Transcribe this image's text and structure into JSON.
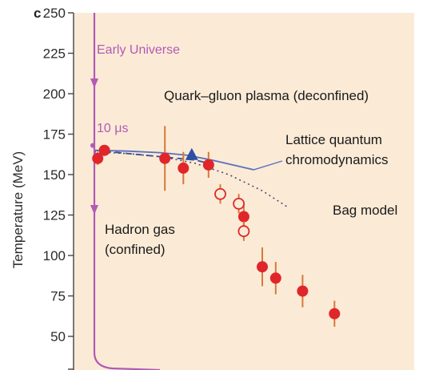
{
  "chart_data": {
    "type": "scatter",
    "panel_label": "c",
    "ylabel": "Temperature (MeV)",
    "xlabel": "",
    "ylim": [
      40,
      250
    ],
    "yticks": [
      50,
      75,
      100,
      125,
      150,
      175,
      200,
      225,
      250
    ],
    "grid": false,
    "background_color": "#fbebd6",
    "annotations": {
      "early_universe": "Early Universe",
      "time_marker": "10 μs",
      "qgp": "Quark–gluon plasma (deconfined)",
      "lattice_line1": "Lattice quantum",
      "lattice_line2": "chromodynamics",
      "bag_model": "Bag model",
      "hadron_line1": "Hadron gas",
      "hadron_line2": "(confined)"
    },
    "series": [
      {
        "marker": "filled-circle",
        "color": "#e0262a",
        "points": [
          {
            "x": 0.02,
            "y": 160,
            "err": 4
          },
          {
            "x": 0.06,
            "y": 165,
            "err": 3
          },
          {
            "x": 0.42,
            "y": 160,
            "err": 20
          },
          {
            "x": 0.53,
            "y": 154,
            "err": 10
          },
          {
            "x": 0.68,
            "y": 156,
            "err": 8
          },
          {
            "x": 0.89,
            "y": 124,
            "err": 8
          },
          {
            "x": 1.0,
            "y": 93,
            "err": 12
          },
          {
            "x": 1.08,
            "y": 86,
            "err": 10
          },
          {
            "x": 1.24,
            "y": 78,
            "err": 10
          },
          {
            "x": 1.43,
            "y": 64,
            "err": 8
          }
        ]
      },
      {
        "marker": "open-circle",
        "color": "#e0262a",
        "points": [
          {
            "x": 0.75,
            "y": 138,
            "err": 6
          },
          {
            "x": 0.86,
            "y": 132,
            "err": 6
          },
          {
            "x": 0.89,
            "y": 115,
            "err": 6
          }
        ]
      },
      {
        "marker": "triangle",
        "color": "#2e4fa6",
        "points": [
          {
            "x": 0.58,
            "y": 162,
            "err": 0
          }
        ]
      }
    ],
    "lattice_curve": [
      [
        0.0,
        165
      ],
      [
        0.2,
        164.5
      ],
      [
        0.4,
        163.5
      ],
      [
        0.55,
        162
      ],
      [
        0.7,
        159
      ],
      [
        0.95,
        153
      ]
    ],
    "bag_model_curve": [
      [
        0.0,
        164
      ],
      [
        0.2,
        163
      ],
      [
        0.4,
        161
      ],
      [
        0.6,
        157
      ],
      [
        0.8,
        150
      ],
      [
        1.0,
        140
      ],
      [
        1.15,
        130
      ]
    ],
    "dashed_curve": [
      [
        0.0,
        165
      ],
      [
        0.2,
        163
      ],
      [
        0.4,
        161
      ],
      [
        0.6,
        159
      ],
      [
        0.68,
        157
      ]
    ]
  }
}
